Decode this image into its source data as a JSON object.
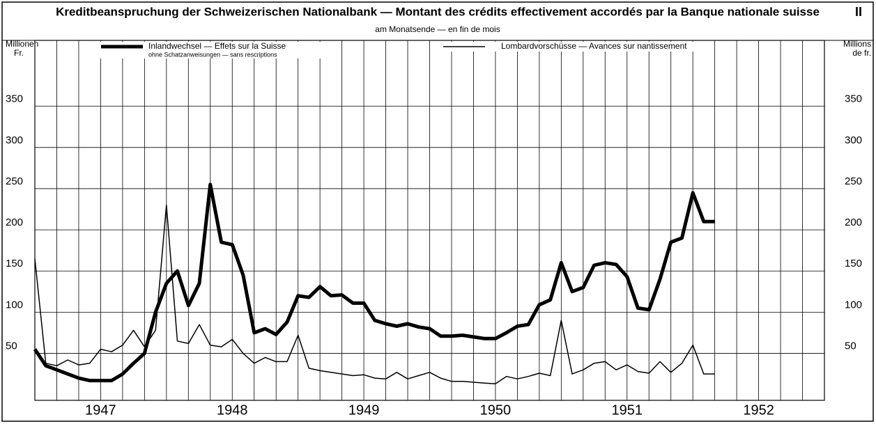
{
  "chart_data": {
    "type": "line",
    "title": "Kreditbeanspruchung der Schweizerischen Nationalbank — Montant des crédits effectivement accordés par la Banque nationale suisse",
    "subtitle": "am Monatsende — en fin de mois",
    "corner_label": "II",
    "ylabel": [
      "Millionen",
      "Fr."
    ],
    "y2label": [
      "Millions",
      "de fr."
    ],
    "x": [
      1947,
      1947.083,
      1947.167,
      1947.25,
      1947.333,
      1947.417,
      1947.5,
      1947.583,
      1947.667,
      1947.75,
      1947.833,
      1947.917,
      1948,
      1948.083,
      1948.167,
      1948.25,
      1948.333,
      1948.417,
      1948.5,
      1948.583,
      1948.667,
      1948.75,
      1948.833,
      1948.917,
      1949,
      1949.083,
      1949.167,
      1949.25,
      1949.333,
      1949.417,
      1949.5,
      1949.583,
      1949.667,
      1949.75,
      1949.833,
      1949.917,
      1950,
      1950.083,
      1950.167,
      1950.25,
      1950.333,
      1950.417,
      1950.5,
      1950.583,
      1950.667,
      1950.75,
      1950.833,
      1950.917,
      1951,
      1951.083,
      1951.167,
      1951.25,
      1951.333,
      1951.417,
      1951.5,
      1951.583,
      1951.667,
      1951.75,
      1951.833,
      1951.917,
      1952,
      1952.083,
      1952.167
    ],
    "series": [
      {
        "name": "Inlandwechsel — Effets sur la Suisse",
        "note": "ohne Schatzanweisungen — sans rescriptions",
        "color": "#000000",
        "width": 5,
        "values": [
          55,
          35,
          30,
          25,
          20,
          17,
          17,
          17,
          25,
          38,
          50,
          100,
          135,
          150,
          108,
          135,
          255,
          185,
          182,
          145,
          75,
          80,
          73,
          88,
          120,
          118,
          131,
          120,
          121,
          111,
          111,
          90,
          86,
          83,
          86,
          82,
          80,
          71,
          71,
          72,
          70,
          68,
          68,
          75,
          83,
          85,
          109,
          115,
          160,
          125,
          130,
          157,
          160,
          158,
          143,
          105,
          103,
          140,
          185,
          190,
          245,
          210,
          210
        ]
      },
      {
        "name": "Lombardvorschüsse — Avances sur nantissement",
        "color": "#000000",
        "width": 1.5,
        "values": [
          165,
          38,
          35,
          42,
          36,
          38,
          55,
          52,
          60,
          78,
          58,
          78,
          230,
          65,
          62,
          85,
          60,
          58,
          67,
          50,
          38,
          45,
          40,
          40,
          72,
          32,
          29,
          27,
          25,
          23,
          24,
          20,
          19,
          27,
          19,
          23,
          27,
          20,
          16,
          16,
          15,
          14,
          13,
          22,
          19,
          22,
          26,
          23,
          90,
          25,
          30,
          38,
          40,
          30,
          36,
          28,
          26,
          40,
          27,
          38,
          60,
          25,
          25
        ]
      }
    ],
    "xlim": [
      1947,
      1953
    ],
    "xticks": [
      {
        "value": 1947.5,
        "label": "1947"
      },
      {
        "value": 1948.5,
        "label": "1948"
      },
      {
        "value": 1949.5,
        "label": "1949"
      },
      {
        "value": 1950.5,
        "label": "1950"
      },
      {
        "value": 1951.5,
        "label": "1951"
      },
      {
        "value": 1952.5,
        "label": "1952"
      }
    ],
    "ylim": [
      -7,
      430
    ],
    "yticks": [
      50,
      100,
      150,
      200,
      250,
      300,
      350
    ],
    "y2lim": [
      -7,
      430
    ],
    "y2ticks": [
      50,
      100,
      150,
      200,
      250,
      300,
      350
    ],
    "grid": true
  }
}
